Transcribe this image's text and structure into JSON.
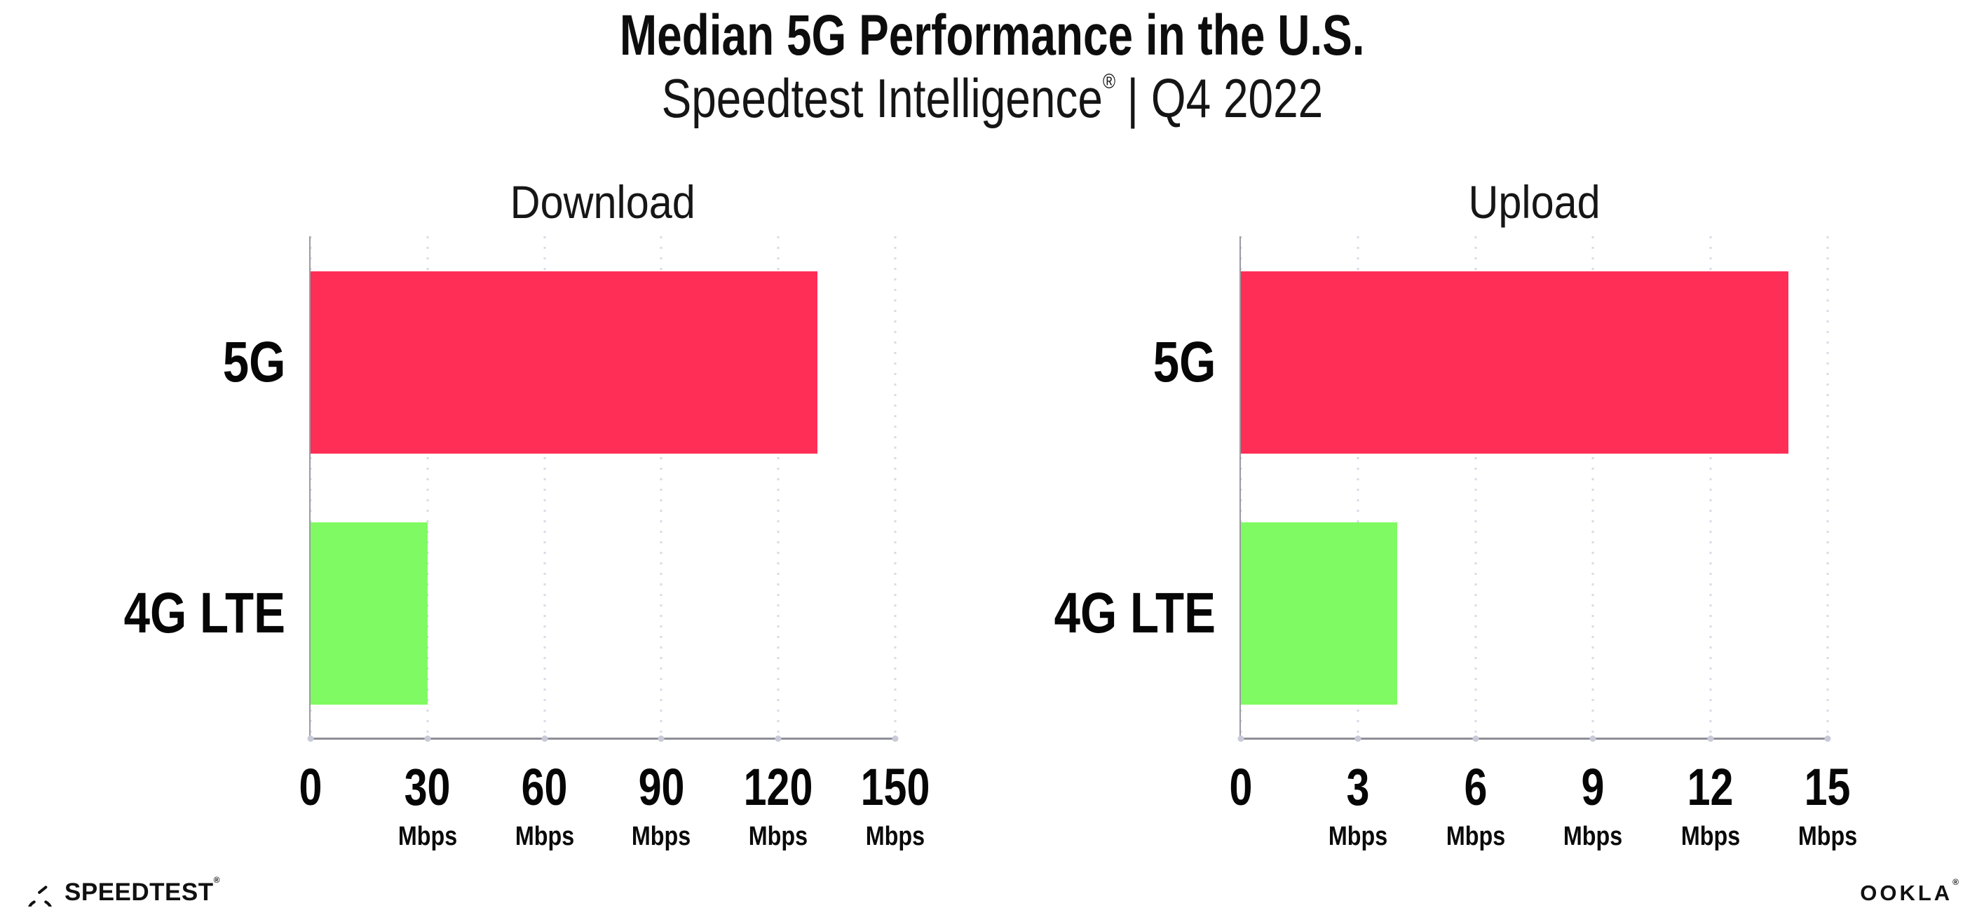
{
  "header": {
    "title": "Median 5G Performance in the U.S.",
    "subtitle_brand": "Speedtest Intelligence",
    "subtitle_mark": "®",
    "subtitle_rest": "| Q4 2022"
  },
  "chart_data": [
    {
      "type": "bar",
      "orientation": "horizontal",
      "title": "Download",
      "categories": [
        "5G",
        "4G LTE"
      ],
      "values": [
        130,
        30
      ],
      "unit": "Mbps",
      "xlim": [
        0,
        150
      ],
      "xticks": [
        0,
        30,
        60,
        90,
        120,
        150
      ],
      "bar_colors": [
        "#FF2E56",
        "#80FA62"
      ],
      "grid": "vertical-dotted",
      "legend": "none"
    },
    {
      "type": "bar",
      "orientation": "horizontal",
      "title": "Upload",
      "categories": [
        "5G",
        "4G LTE"
      ],
      "values": [
        14,
        4
      ],
      "unit": "Mbps",
      "xlim": [
        0,
        15
      ],
      "xticks": [
        0,
        3,
        6,
        9,
        12,
        15
      ],
      "bar_colors": [
        "#FF2E56",
        "#80FA62"
      ],
      "grid": "vertical-dotted",
      "legend": "none"
    }
  ],
  "footer": {
    "speedtest_label": "SPEEDTEST",
    "speedtest_mark": "®",
    "ookla_label": "OOKLA",
    "ookla_mark": "®"
  },
  "colors": {
    "bar_5g": "#FF2E56",
    "bar_4g_lte": "#80FA62",
    "axis": "#8e8e96",
    "gridline": "#d9dae8",
    "text": "#0d0d0d"
  }
}
